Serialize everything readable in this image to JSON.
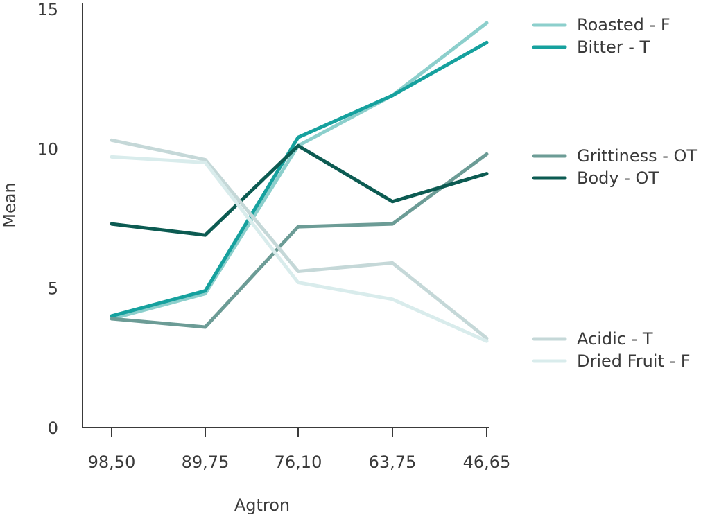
{
  "chart_data": {
    "type": "line",
    "title": "",
    "xlabel": "Agtron",
    "ylabel": "Mean",
    "categories": [
      "98,50",
      "89,75",
      "76,10",
      "63,75",
      "46,65"
    ],
    "ylim": [
      0,
      15
    ],
    "yticks": [
      "0",
      "5",
      "10",
      "15"
    ],
    "grid": false,
    "legend_position": "right",
    "series": [
      {
        "name": "Roasted - F",
        "color": "#8ccfcc",
        "values": [
          3.9,
          4.8,
          10.1,
          11.9,
          14.5
        ]
      },
      {
        "name": "Bitter - T",
        "color": "#16a19e",
        "values": [
          4.0,
          4.9,
          10.4,
          11.9,
          13.8
        ]
      },
      {
        "name": "Grittiness - OT",
        "color": "#6c9c96",
        "values": [
          3.9,
          3.6,
          7.2,
          7.3,
          9.8
        ]
      },
      {
        "name": "Body - OT",
        "color": "#0c5b52",
        "values": [
          7.3,
          6.9,
          10.1,
          8.1,
          9.1
        ]
      },
      {
        "name": "Acidic - T",
        "color": "#c5d8d8",
        "values": [
          10.3,
          9.6,
          5.6,
          5.9,
          3.2
        ]
      },
      {
        "name": "Dried Fruit - F",
        "color": "#d9ecec",
        "values": [
          9.7,
          9.5,
          5.2,
          4.6,
          3.1
        ]
      }
    ]
  }
}
